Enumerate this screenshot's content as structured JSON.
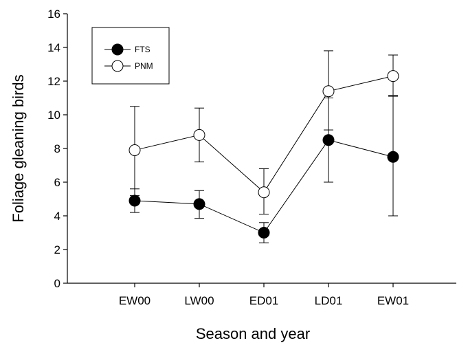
{
  "chart_data": {
    "type": "line",
    "title": "",
    "xlabel": "Season and year",
    "ylabel": "Foliage gleaning birds",
    "categories": [
      "EW00",
      "LW00",
      "ED01",
      "LD01",
      "EW01"
    ],
    "ylim": [
      0,
      16
    ],
    "yticks": [
      0,
      2,
      4,
      6,
      8,
      10,
      12,
      14,
      16
    ],
    "grid": false,
    "legend_position": "top-left",
    "series": [
      {
        "name": "FTS",
        "marker": "filled-circle",
        "color": "#000000",
        "values": [
          4.9,
          4.7,
          3.0,
          8.5,
          7.5
        ],
        "error_low": [
          4.2,
          3.85,
          2.4,
          6.0,
          4.0
        ],
        "error_high": [
          5.6,
          5.5,
          3.6,
          11.0,
          11.1
        ]
      },
      {
        "name": "PNM",
        "marker": "open-circle",
        "color": "#000000",
        "values": [
          7.9,
          8.8,
          5.4,
          11.4,
          12.3
        ],
        "error_low": [
          5.2,
          7.2,
          4.1,
          9.1,
          11.15
        ],
        "error_high": [
          10.5,
          10.4,
          6.8,
          13.8,
          13.55
        ]
      }
    ]
  }
}
